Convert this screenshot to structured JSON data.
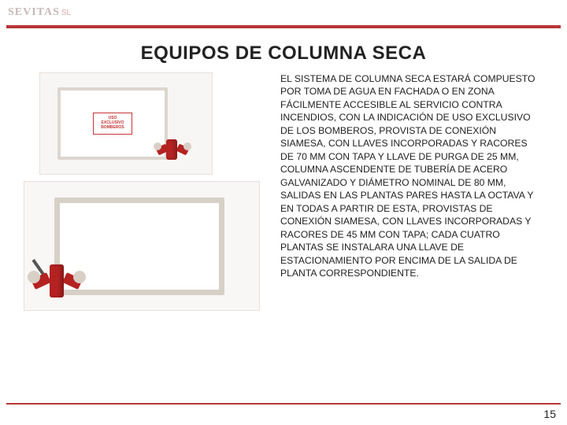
{
  "header": {
    "logo_main": "SEVITAS",
    "logo_suffix": "SL"
  },
  "title": "EQUIPOS DE COLUMNA SECA",
  "images": {
    "box1_label_line1": "USO",
    "box1_label_line2": "EXCLUSIVO",
    "box1_label_line3": "BOMBEROS"
  },
  "body_text": "EL SISTEMA DE COLUMNA SECA ESTARÁ COMPUESTO POR TOMA DE AGUA EN FACHADA O EN ZONA FÁCILMENTE ACCESIBLE AL SERVICIO CONTRA INCENDIOS, CON LA INDICACIÓN DE USO EXCLUSIVO DE LOS BOMBEROS, PROVISTA DE CONEXIÓN SIAMESA, CON LLAVES INCORPORADAS Y RACORES DE 70 MM CON TAPA Y LLAVE DE PURGA DE 25 MM, COLUMNA ASCENDENTE DE TUBERÍA DE ACERO GALVANIZADO Y DIÁMETRO NOMINAL DE 80 MM, SALIDAS EN LAS PLANTAS PARES HASTA LA OCTAVA Y EN TODAS A PARTIR DE ESTA, PROVISTAS DE CONEXIÓN SIAMESA, CON LLAVES INCORPORADAS Y RACORES DE 45 MM CON TAPA; CADA CUATRO PLANTAS SE INSTALARA UNA LLAVE DE ESTACIONAMIENTO POR ENCIMA DE LA SALIDA DE PLANTA CORRESPONDIENTE.",
  "page_number": "15",
  "colors": {
    "rule": "#b83535",
    "valve_red": "#b52222",
    "logo_gray": "#c8b8b8",
    "text": "#222222",
    "background": "#ffffff"
  }
}
